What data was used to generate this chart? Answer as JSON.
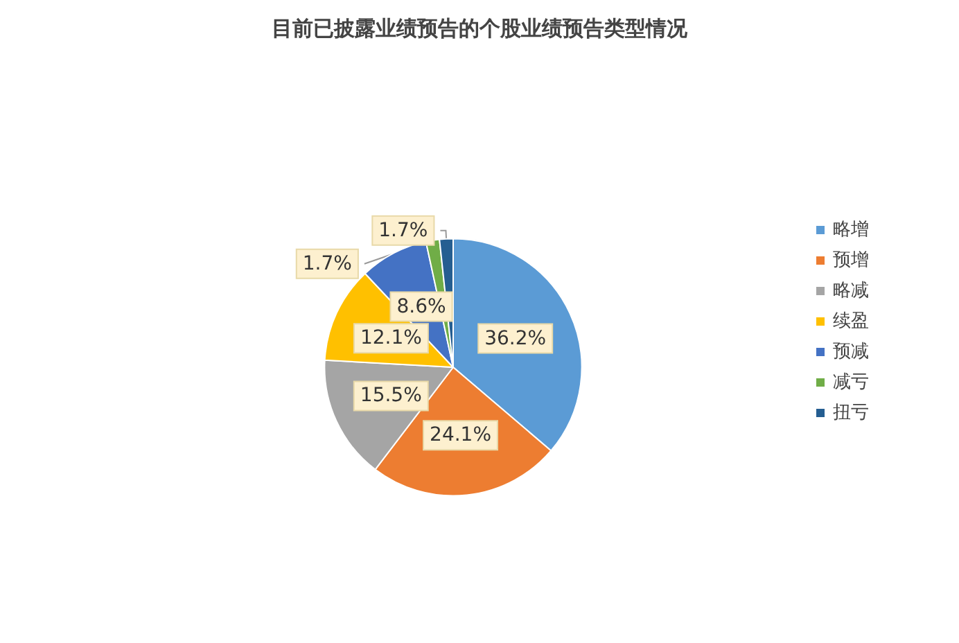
{
  "chart_data": {
    "type": "pie",
    "title": "目前已披露业绩预告的个股业绩预告类型情况",
    "categories": [
      "略增",
      "预增",
      "略减",
      "续盈",
      "预减",
      "减亏",
      "扭亏"
    ],
    "values": [
      36.2,
      24.1,
      15.5,
      12.1,
      8.6,
      1.7,
      1.7
    ],
    "value_labels": [
      "36.2%",
      "24.1%",
      "15.5%",
      "12.1%",
      "8.6%",
      "1.7%",
      "1.7%"
    ],
    "colors": [
      "#5b9bd5",
      "#ed7d31",
      "#a5a5a5",
      "#ffc000",
      "#4472c4",
      "#70ad47",
      "#255e91"
    ],
    "legend": "right"
  }
}
